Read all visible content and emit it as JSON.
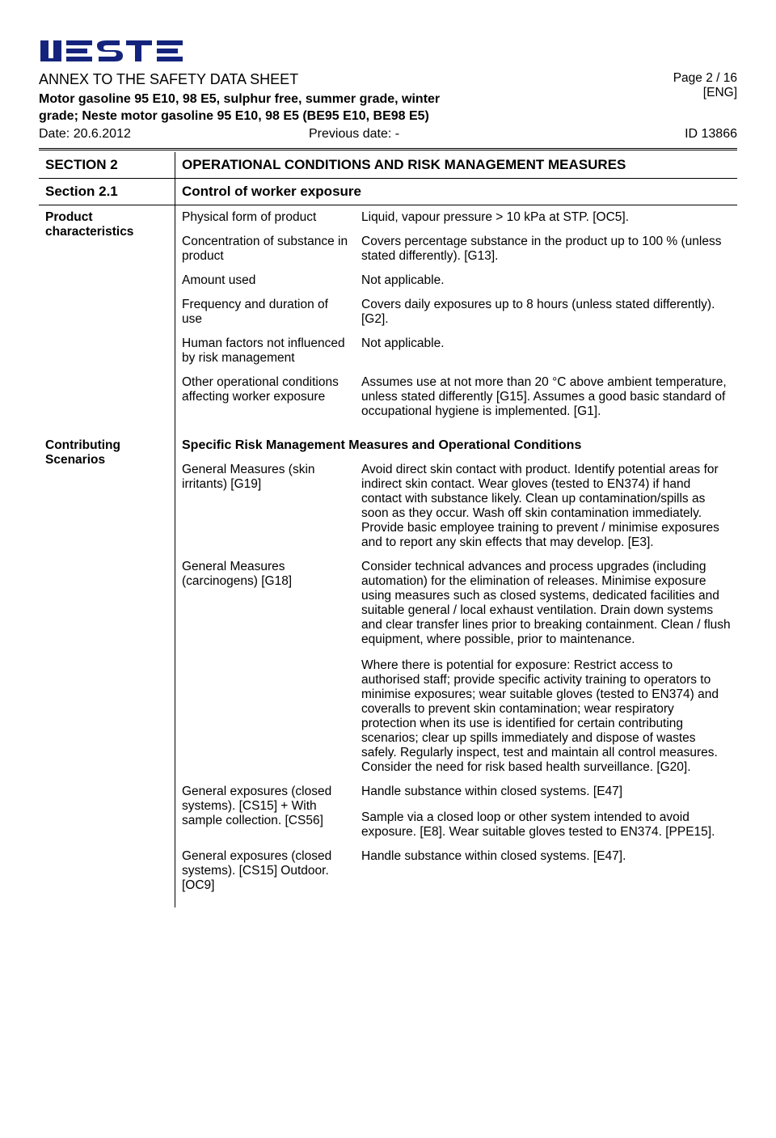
{
  "logo_color": "#14247d",
  "header": {
    "annex": "ANNEX TO THE SAFETY DATA SHEET",
    "product": "Motor gasoline 95 E10, 98 E5, sulphur free, summer grade, winter grade; Neste motor gasoline 95 E10, 98 E5 (BE95 E10, BE98 E5)",
    "page": "Page 2 / 16",
    "lang": "[ENG]",
    "date": "Date: 20.6.2012",
    "prev_date": "Previous date: -",
    "doc_id": "ID 13866"
  },
  "section2": {
    "label": "SECTION 2",
    "title": "OPERATIONAL CONDITIONS AND RISK MANAGEMENT MEASURES"
  },
  "section21": {
    "label": "Section 2.1",
    "title": "Control of worker exposure"
  },
  "product_chars": {
    "label": "Product characteristics",
    "rows": [
      {
        "k": "Physical form of product",
        "v": "Liquid, vapour pressure > 10 kPa at STP. [OC5]."
      },
      {
        "k": "Concentration of substance in product",
        "v": "Covers percentage substance in the product up to 100 % (unless stated differently). [G13]."
      },
      {
        "k": "Amount used",
        "v": "Not applicable."
      },
      {
        "k": "Frequency and duration of use",
        "v": "Covers daily exposures up to 8 hours (unless stated differently). [G2]."
      },
      {
        "k": "Human factors not influenced by risk management",
        "v": "Not applicable."
      },
      {
        "k": "Other operational conditions affecting worker exposure",
        "v": "Assumes use at not more than 20 °C above ambient temperature, unless stated differently [G15]. Assumes a good basic standard of occupational hygiene is implemented. [G1]."
      }
    ]
  },
  "contrib": {
    "label": "Contributing Scenarios",
    "title": "Specific Risk Management Measures and Operational Conditions",
    "rows": [
      {
        "k": "General Measures (skin irritants) [G19]",
        "v": [
          "Avoid direct skin contact with product. Identify potential areas for indirect skin contact. Wear gloves (tested to EN374) if hand contact with substance likely. Clean up contamination/spills as soon as they occur. Wash off skin contamination immediately. Provide basic employee training to prevent / minimise exposures and to report any skin effects that may develop. [E3]."
        ]
      },
      {
        "k": "General Measures (carcinogens) [G18]",
        "v": [
          "Consider technical advances and process upgrades (including automation) for the elimination of releases. Minimise exposure using measures such as closed systems, dedicated facilities and suitable general / local exhaust ventilation. Drain down systems and clear transfer lines prior to breaking containment. Clean / flush equipment, where possible, prior to maintenance.",
          "Where there is potential for exposure: Restrict access to authorised staff; provide specific activity training to operators to minimise exposures; wear suitable gloves (tested to EN374) and coveralls to prevent skin contamination; wear respiratory protection when its use is identified for certain contributing scenarios; clear up spills immediately and dispose of wastes safely. Regularly inspect, test and maintain all control measures. Consider the need for risk based health surveillance. [G20]."
        ]
      },
      {
        "k": "General exposures (closed systems). [CS15] + With sample collection. [CS56]",
        "v": [
          "Handle substance within closed systems. [E47]",
          "Sample via a closed loop or other system intended to avoid exposure. [E8]. Wear suitable gloves tested to EN374. [PPE15]."
        ]
      },
      {
        "k": "General exposures (closed systems). [CS15] Outdoor. [OC9]",
        "v": [
          "Handle substance within closed systems. [E47]."
        ]
      }
    ]
  }
}
